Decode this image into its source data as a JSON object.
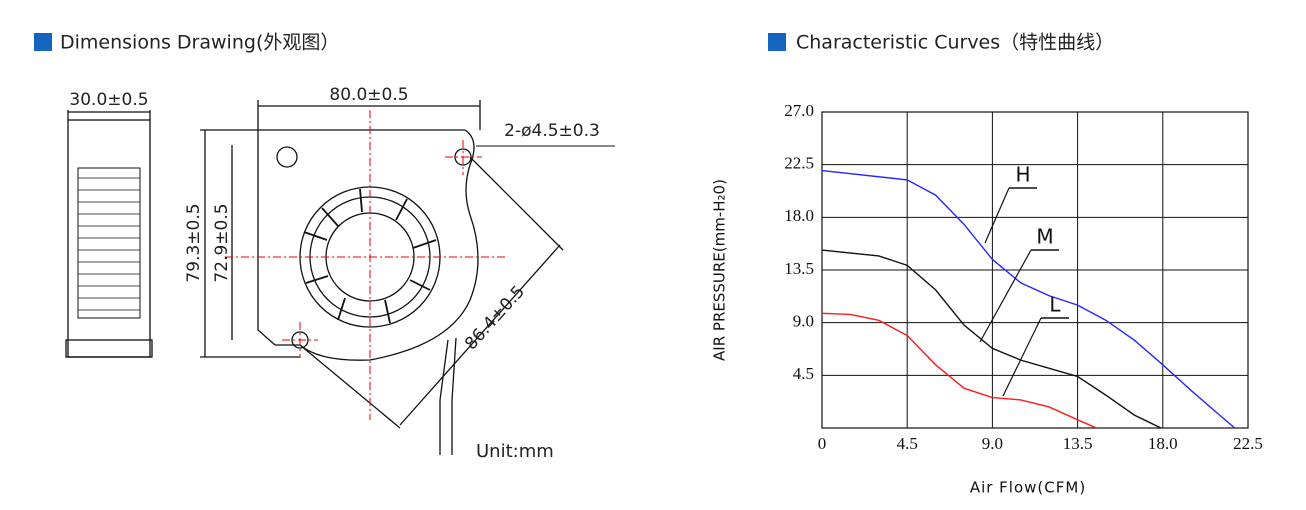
{
  "drawing": {
    "title": "Dimensions Drawing(外观图）",
    "labels": [
      "30.0±0.5",
      "80.0±0.5",
      "2-ø4.5±0.3",
      "79.3±0.5",
      "72.9±0.5",
      "86.4±0.5"
    ],
    "unit": "Unit:mm"
  },
  "chart_data": {
    "type": "line",
    "title": "Characteristic Curves（特性曲线）",
    "x_label": "Air Flow(CFM)",
    "y_label": "AIR PRESSURE(mm-H₂0)",
    "xlim": [
      0,
      22.5
    ],
    "ylim": [
      0,
      27
    ],
    "xticks": [
      0,
      4.5,
      {
        "value": 9,
        "label": "9.0"
      },
      13.5,
      {
        "value": 18,
        "label": "18.0"
      },
      22.5
    ],
    "yticks": [
      4.5,
      {
        "value": 9,
        "label": "9.0"
      },
      13.5,
      {
        "value": 18,
        "label": "18.0"
      },
      22.5,
      {
        "value": 27,
        "label": "27.0"
      }
    ],
    "grid": true,
    "series": [
      {
        "name": "H",
        "color": "#2626ff",
        "x": [
          0,
          4.5,
          6,
          7.5,
          9,
          10.5,
          12,
          13.5,
          15,
          16.5,
          18,
          19.5,
          21,
          21.8
        ],
        "values": [
          22.0,
          21.2,
          19.9,
          17.4,
          14.4,
          12.4,
          11.3,
          10.5,
          9.2,
          7.5,
          5.4,
          3.2,
          1.1,
          0
        ]
      },
      {
        "name": "M",
        "color": "#111111",
        "x": [
          0,
          3,
          4.5,
          6,
          7.5,
          9,
          10.5,
          12,
          13.5,
          15,
          16.5,
          17.9
        ],
        "values": [
          15.2,
          14.7,
          13.9,
          11.8,
          8.8,
          6.8,
          5.8,
          5.1,
          4.4,
          2.8,
          1.1,
          0
        ]
      },
      {
        "name": "L",
        "color": "#ff1a1a",
        "x": [
          0,
          1.5,
          3,
          4.5,
          6,
          7.5,
          9,
          10.5,
          12,
          13.5,
          14.5
        ],
        "values": [
          9.8,
          9.7,
          9.2,
          7.9,
          5.4,
          3.4,
          2.6,
          2.4,
          1.8,
          0.7,
          0
        ]
      }
    ]
  }
}
